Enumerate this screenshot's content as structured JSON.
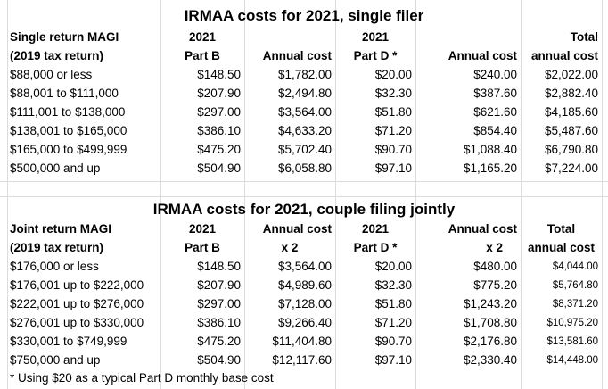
{
  "single": {
    "title": "IRMAA costs for 2021, single filer",
    "headers": {
      "magi_1": "Single return MAGI",
      "magi_2": "(2019 tax return)",
      "partb_1": "2021",
      "partb_2": "Part B",
      "annual_b": "Annual cost",
      "partd_1": "2021",
      "partd_2": "Part D *",
      "annual_d": "Annual cost",
      "total_1": "Total",
      "total_2": "annual cost"
    },
    "rows": [
      {
        "magi": "$88,000 or less",
        "partb": "$148.50",
        "annual_b": "$1,782.00",
        "partd": "$20.00",
        "annual_d": "$240.00",
        "total": "$2,022.00"
      },
      {
        "magi": "$88,001 to $111,000",
        "partb": "$207.90",
        "annual_b": "$2,494.80",
        "partd": "$32.30",
        "annual_d": "$387.60",
        "total": "$2,882.40"
      },
      {
        "magi": "$111,001 to $138,000",
        "partb": "$297.00",
        "annual_b": "$3,564.00",
        "partd": "$51.80",
        "annual_d": "$621.60",
        "total": "$4,185.60"
      },
      {
        "magi": "$138,001 to $165,000",
        "partb": "$386.10",
        "annual_b": "$4,633.20",
        "partd": "$71.20",
        "annual_d": "$854.40",
        "total": "$5,487.60"
      },
      {
        "magi": "$165,000 to $499,999",
        "partb": "$475.20",
        "annual_b": "$5,702.40",
        "partd": "$90.70",
        "annual_d": "$1,088.40",
        "total": "$6,790.80"
      },
      {
        "magi": "$500,000 and up",
        "partb": "$504.90",
        "annual_b": "$6,058.80",
        "partd": "$97.10",
        "annual_d": "$1,165.20",
        "total": "$7,224.00"
      }
    ]
  },
  "joint": {
    "title": "IRMAA costs for 2021, couple filing jointly",
    "headers": {
      "magi_1": "Joint return MAGI",
      "magi_2": "(2019 tax return)",
      "partb_1": "2021",
      "partb_2": "Part B",
      "annual_b_1": "Annual cost",
      "annual_b_2": "x 2",
      "partd_1": "2021",
      "partd_2": "Part D *",
      "annual_d_1": "Annual cost",
      "annual_d_2": "x 2",
      "total_1": "Total",
      "total_2": "annual cost"
    },
    "rows": [
      {
        "magi": "$176,000 or less",
        "partb": "$148.50",
        "annual_b": "$3,564.00",
        "partd": "$20.00",
        "annual_d": "$480.00",
        "total": "$4,044.00"
      },
      {
        "magi": "$176,001 up to $222,000",
        "partb": "$207.90",
        "annual_b": "$4,989.60",
        "partd": "$32.30",
        "annual_d": "$775.20",
        "total": "$5,764.80"
      },
      {
        "magi": "$222,001 up to $276,000",
        "partb": "$297.00",
        "annual_b": "$7,128.00",
        "partd": "$51.80",
        "annual_d": "$1,243.20",
        "total": "$8,371.20"
      },
      {
        "magi": "$276,001 up to $330,000",
        "partb": "$386.10",
        "annual_b": "$9,266.40",
        "partd": "$71.20",
        "annual_d": "$1,708.80",
        "total": "$10,975.20"
      },
      {
        "magi": "$330,001 to $749,999",
        "partb": "$475.20",
        "annual_b": "$11,404.80",
        "partd": "$90.70",
        "annual_d": "$2,176.80",
        "total": "$13,581.60"
      },
      {
        "magi": "$750,000 and up",
        "partb": "$504.90",
        "annual_b": "$12,117.60",
        "partd": "$97.10",
        "annual_d": "$2,330.40",
        "total": "$14,448.00"
      }
    ]
  },
  "footnote": "* Using $20 as a typical Part D monthly base cost"
}
